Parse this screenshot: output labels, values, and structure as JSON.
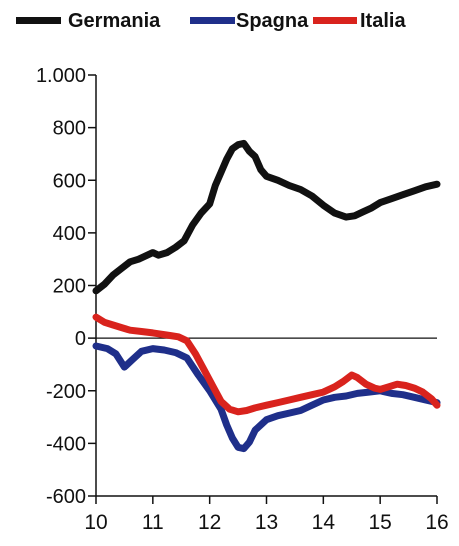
{
  "chart_data": {
    "type": "line",
    "title": "",
    "xlabel": "",
    "ylabel": "",
    "xlim": [
      10,
      16
    ],
    "ylim": [
      -600,
      1000
    ],
    "x_ticks": [
      10,
      11,
      12,
      13,
      14,
      15,
      16
    ],
    "x_tick_labels": [
      "10",
      "11",
      "12",
      "13",
      "14",
      "15",
      "16"
    ],
    "y_ticks": [
      1000,
      800,
      600,
      400,
      200,
      0,
      -200,
      -400,
      -600
    ],
    "y_tick_labels": [
      "1.000",
      "800",
      "600",
      "400",
      "200",
      "0",
      "-200",
      "-400",
      "-600"
    ],
    "zero_line": true,
    "grid": false,
    "legend_position": "top",
    "series": [
      {
        "name": "Germania",
        "color": "#111111",
        "points": [
          [
            10.0,
            180
          ],
          [
            10.15,
            205
          ],
          [
            10.3,
            240
          ],
          [
            10.45,
            265
          ],
          [
            10.6,
            290
          ],
          [
            10.75,
            300
          ],
          [
            10.9,
            315
          ],
          [
            11.0,
            325
          ],
          [
            11.1,
            315
          ],
          [
            11.25,
            325
          ],
          [
            11.4,
            345
          ],
          [
            11.55,
            370
          ],
          [
            11.7,
            430
          ],
          [
            11.85,
            475
          ],
          [
            12.0,
            510
          ],
          [
            12.1,
            580
          ],
          [
            12.2,
            630
          ],
          [
            12.3,
            680
          ],
          [
            12.4,
            720
          ],
          [
            12.5,
            735
          ],
          [
            12.6,
            740
          ],
          [
            12.7,
            710
          ],
          [
            12.8,
            690
          ],
          [
            12.9,
            640
          ],
          [
            13.0,
            615
          ],
          [
            13.2,
            600
          ],
          [
            13.4,
            580
          ],
          [
            13.6,
            565
          ],
          [
            13.8,
            540
          ],
          [
            14.0,
            505
          ],
          [
            14.2,
            475
          ],
          [
            14.4,
            460
          ],
          [
            14.55,
            465
          ],
          [
            14.7,
            480
          ],
          [
            14.85,
            495
          ],
          [
            15.0,
            515
          ],
          [
            15.2,
            530
          ],
          [
            15.4,
            545
          ],
          [
            15.6,
            560
          ],
          [
            15.8,
            575
          ],
          [
            16.0,
            585
          ]
        ]
      },
      {
        "name": "Spagna",
        "color": "#1f2f8a",
        "points": [
          [
            10.0,
            -30
          ],
          [
            10.2,
            -40
          ],
          [
            10.35,
            -60
          ],
          [
            10.5,
            -110
          ],
          [
            10.65,
            -80
          ],
          [
            10.8,
            -50
          ],
          [
            11.0,
            -40
          ],
          [
            11.2,
            -45
          ],
          [
            11.4,
            -55
          ],
          [
            11.6,
            -75
          ],
          [
            11.8,
            -140
          ],
          [
            12.0,
            -200
          ],
          [
            12.2,
            -270
          ],
          [
            12.3,
            -330
          ],
          [
            12.4,
            -380
          ],
          [
            12.5,
            -415
          ],
          [
            12.6,
            -420
          ],
          [
            12.7,
            -395
          ],
          [
            12.8,
            -350
          ],
          [
            13.0,
            -310
          ],
          [
            13.2,
            -295
          ],
          [
            13.4,
            -285
          ],
          [
            13.6,
            -275
          ],
          [
            13.8,
            -255
          ],
          [
            14.0,
            -235
          ],
          [
            14.2,
            -225
          ],
          [
            14.4,
            -220
          ],
          [
            14.6,
            -210
          ],
          [
            14.8,
            -205
          ],
          [
            15.0,
            -200
          ],
          [
            15.2,
            -210
          ],
          [
            15.4,
            -215
          ],
          [
            15.6,
            -225
          ],
          [
            15.8,
            -235
          ],
          [
            16.0,
            -245
          ]
        ]
      },
      {
        "name": "Italia",
        "color": "#d9231d",
        "points": [
          [
            10.0,
            80
          ],
          [
            10.15,
            60
          ],
          [
            10.3,
            50
          ],
          [
            10.45,
            40
          ],
          [
            10.6,
            30
          ],
          [
            10.8,
            25
          ],
          [
            11.0,
            20
          ],
          [
            11.15,
            15
          ],
          [
            11.3,
            10
          ],
          [
            11.45,
            5
          ],
          [
            11.6,
            -10
          ],
          [
            11.75,
            -60
          ],
          [
            11.9,
            -120
          ],
          [
            12.05,
            -180
          ],
          [
            12.2,
            -240
          ],
          [
            12.35,
            -270
          ],
          [
            12.5,
            -280
          ],
          [
            12.65,
            -275
          ],
          [
            12.8,
            -265
          ],
          [
            13.0,
            -255
          ],
          [
            13.2,
            -245
          ],
          [
            13.4,
            -235
          ],
          [
            13.6,
            -225
          ],
          [
            13.8,
            -215
          ],
          [
            14.0,
            -205
          ],
          [
            14.2,
            -185
          ],
          [
            14.35,
            -165
          ],
          [
            14.5,
            -140
          ],
          [
            14.6,
            -150
          ],
          [
            14.75,
            -175
          ],
          [
            14.9,
            -190
          ],
          [
            15.0,
            -195
          ],
          [
            15.15,
            -185
          ],
          [
            15.3,
            -175
          ],
          [
            15.45,
            -180
          ],
          [
            15.6,
            -190
          ],
          [
            15.75,
            -205
          ],
          [
            15.9,
            -230
          ],
          [
            16.0,
            -255
          ]
        ]
      }
    ]
  }
}
